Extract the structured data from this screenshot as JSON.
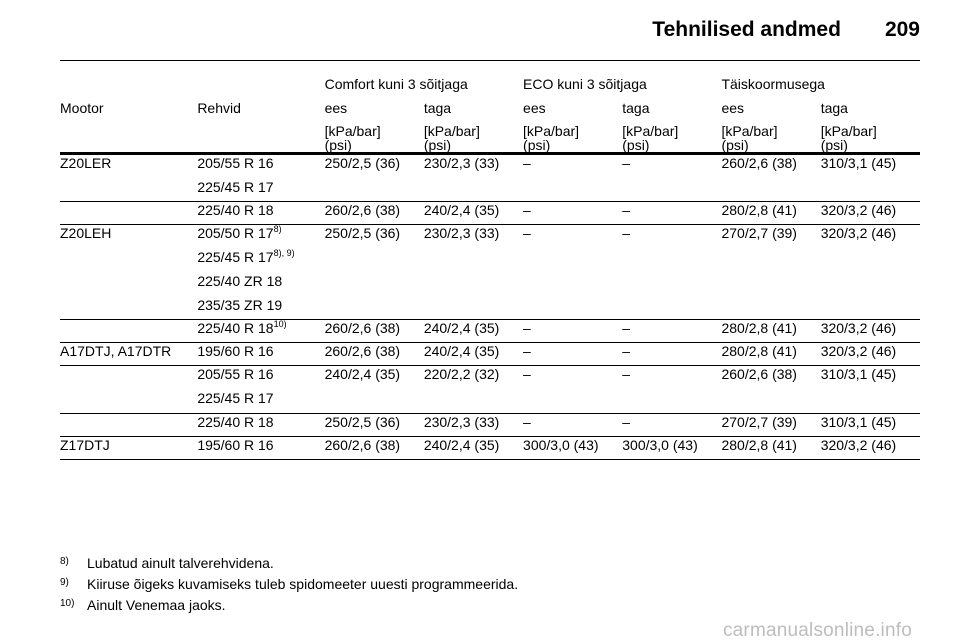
{
  "header": {
    "title": "Tehnilised andmed",
    "page_number": "209"
  },
  "table": {
    "group_headers": [
      "Comfort kuni 3 sõitjaga",
      "ECO kuni 3 sõitjaga",
      "Täiskoormusega"
    ],
    "col_motor": "Mootor",
    "col_tyre": "Rehvid",
    "sub_headers": [
      "ees",
      "taga",
      "ees",
      "taga",
      "ees",
      "taga"
    ],
    "unit_line1": "[kPa/bar]",
    "unit_line2": "(psi)",
    "rows": [
      {
        "motor": "Z20LER",
        "tyres": [
          "205/55 R 16",
          "225/45 R 17"
        ],
        "tyre_notes": [
          "",
          ""
        ],
        "values": [
          "250/2,5 (36)",
          "230/2,3 (33)",
          "–",
          "–",
          "260/2,6 (38)",
          "310/3,1 (45)"
        ]
      },
      {
        "motor": "",
        "tyres": [
          "225/40 R 18"
        ],
        "tyre_notes": [
          ""
        ],
        "values": [
          "260/2,6 (38)",
          "240/2,4 (35)",
          "–",
          "–",
          "280/2,8 (41)",
          "320/3,2 (46)"
        ]
      },
      {
        "motor": "Z20LEH",
        "tyres": [
          "205/50 R 17",
          "225/45 R 17",
          "225/40 ZR 18",
          "235/35 ZR 19"
        ],
        "tyre_notes": [
          "8)",
          "8), 9)",
          "",
          ""
        ],
        "values": [
          "250/2,5 (36)",
          "230/2,3 (33)",
          "–",
          "–",
          "270/2,7 (39)",
          "320/3,2 (46)"
        ]
      },
      {
        "motor": "",
        "tyres": [
          "225/40 R 18"
        ],
        "tyre_notes": [
          "10)"
        ],
        "values": [
          "260/2,6 (38)",
          "240/2,4 (35)",
          "–",
          "–",
          "280/2,8 (41)",
          "320/3,2 (46)"
        ]
      },
      {
        "motor": "A17DTJ, A17DTR",
        "tyres": [
          "195/60 R 16"
        ],
        "tyre_notes": [
          ""
        ],
        "values": [
          "260/2,6 (38)",
          "240/2,4 (35)",
          "–",
          "–",
          "280/2,8 (41)",
          "320/3,2 (46)"
        ]
      },
      {
        "motor": "",
        "tyres": [
          "205/55 R 16",
          "225/45 R 17"
        ],
        "tyre_notes": [
          "",
          ""
        ],
        "values": [
          "240/2,4 (35)",
          "220/2,2 (32)",
          "–",
          "–",
          "260/2,6 (38)",
          "310/3,1 (45)"
        ]
      },
      {
        "motor": "",
        "tyres": [
          "225/40 R 18"
        ],
        "tyre_notes": [
          ""
        ],
        "values": [
          "250/2,5 (36)",
          "230/2,3 (33)",
          "–",
          "–",
          "270/2,7 (39)",
          "310/3,1 (45)"
        ]
      },
      {
        "motor": "Z17DTJ",
        "tyres": [
          "195/60 R 16"
        ],
        "tyre_notes": [
          ""
        ],
        "values": [
          "260/2,6 (38)",
          "240/2,4 (35)",
          "300/3,0 (43)",
          "300/3,0 (43)",
          "280/2,8 (41)",
          "320/3,2 (46)"
        ]
      }
    ]
  },
  "footnotes": [
    {
      "num": "8)",
      "text": "Lubatud ainult talverehvidena."
    },
    {
      "num": "9)",
      "text": "Kiiruse õigeks kuvamiseks tuleb spidomeeter uuesti programmeerida."
    },
    {
      "num": "10)",
      "text": "Ainult Venemaa jaoks."
    }
  ],
  "watermark": "carmanualsonline.info"
}
